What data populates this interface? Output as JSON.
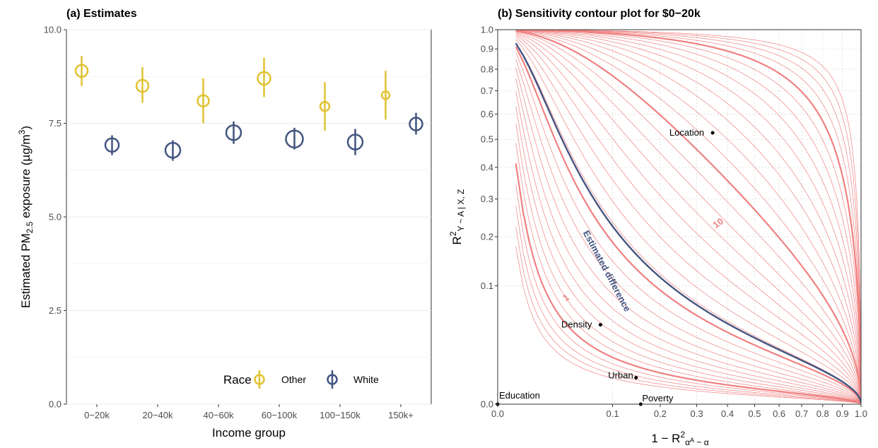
{
  "colors": {
    "other": "#E1C232",
    "white": "#435480",
    "contour": "#F08080",
    "grid_major": "#EBEBEB",
    "grid_dotted": "#CCCCCC"
  },
  "chart_data": [
    {
      "type": "scatter",
      "title": "(a) Estimates",
      "xlabel": "Income group",
      "ylabel_parts": {
        "main": "Estimated PM",
        "sub": "2.5",
        "mid": " exposure (µg/m",
        "sup": "3",
        "end": ")"
      },
      "categories": [
        "0−20k",
        "20−40k",
        "40−60k",
        "60−100k",
        "100−150k",
        "150k+"
      ],
      "ylim": [
        0,
        10
      ],
      "yticks": [
        0,
        2.5,
        5,
        7.5,
        10
      ],
      "ytick_labels": [
        "0.0",
        "2.5",
        "5.0",
        "7.5",
        "10.0"
      ],
      "legend": {
        "title": "Race",
        "position": "bottom-right",
        "entries": [
          "Other",
          "White"
        ]
      },
      "series": [
        {
          "name": "Other",
          "color": "#E1C232",
          "values": [
            8.9,
            8.5,
            8.1,
            8.7,
            7.95,
            8.25
          ],
          "lower": [
            8.5,
            8.05,
            7.5,
            8.2,
            7.3,
            7.6
          ],
          "upper": [
            9.3,
            9.0,
            8.7,
            9.25,
            8.6,
            8.9
          ]
        },
        {
          "name": "White",
          "color": "#435480",
          "values": [
            6.92,
            6.78,
            7.25,
            7.08,
            7.0,
            7.48
          ],
          "lower": [
            6.65,
            6.5,
            6.95,
            6.8,
            6.65,
            7.2
          ],
          "upper": [
            7.18,
            7.05,
            7.55,
            7.38,
            7.35,
            7.78
          ]
        }
      ]
    },
    {
      "type": "line",
      "title": "(b) Sensitivity contour plot for $0−20k",
      "xlabel_parts": {
        "main": "1 − R",
        "sup": "2",
        "sub": "α",
        "subsup": "A",
        "subend": " ~ α"
      },
      "ylabel_parts": {
        "main": "R",
        "sup": "2",
        "sub": "Y ~ A | X, Z"
      },
      "x_scale": "sqrt",
      "y_scale": "sqrt",
      "xlim": [
        0,
        1
      ],
      "ylim": [
        0,
        1
      ],
      "xticks": [
        0,
        0.1,
        0.2,
        0.3,
        0.4,
        0.5,
        0.6,
        0.7,
        0.8,
        0.9,
        1.0
      ],
      "xtick_labels": [
        "0.0",
        "0.1",
        "0.2",
        "0.3",
        "0.4",
        "0.5",
        "0.6",
        "0.7",
        "0.8",
        "0.9",
        "1.0"
      ],
      "yticks": [
        0,
        0.1,
        0.2,
        0.3,
        0.4,
        0.5,
        0.6,
        0.7,
        0.8,
        0.9,
        1.0
      ],
      "ytick_labels": [
        "0.0",
        "0.1",
        "0.2",
        "0.3",
        "0.4",
        "0.5",
        "0.6",
        "0.7",
        "0.8",
        "0.9",
        "1.0"
      ],
      "grid": "dotted",
      "contour_labels": [
        {
          "text": "1",
          "x": 0.035,
          "y": 0.075
        },
        {
          "text": "10",
          "x": 0.36,
          "y": 0.22
        }
      ],
      "estimated_curve_label": "Estimated difference",
      "points": [
        {
          "label": "Location",
          "x": 0.35,
          "y": 0.525
        },
        {
          "label": "Density",
          "x": 0.08,
          "y": 0.045
        },
        {
          "label": "Education",
          "x": 0.0,
          "y": 0.0
        },
        {
          "label": "Urban",
          "x": 0.145,
          "y": 0.005
        },
        {
          "label": "Poverty",
          "x": 0.155,
          "y": 0.0
        }
      ]
    }
  ]
}
